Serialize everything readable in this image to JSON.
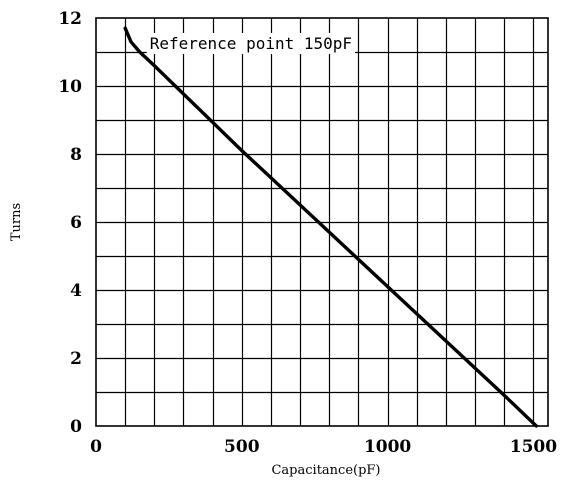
{
  "chart_data": {
    "type": "line",
    "title": "",
    "xlabel": "Capacitance(pF)",
    "ylabel": "Turns",
    "xlim": [
      0,
      1550
    ],
    "ylim": [
      0,
      12
    ],
    "x_ticks": [
      0,
      500,
      1000,
      1500
    ],
    "x_tick_labels": [
      "0",
      "500",
      "1000",
      "1500"
    ],
    "y_ticks": [
      0,
      2,
      4,
      6,
      8,
      10,
      12
    ],
    "y_tick_labels": [
      "0",
      "2",
      "4",
      "6",
      "8",
      "10",
      "12"
    ],
    "grid": true,
    "grid_x_step": 100,
    "grid_y_step": 1,
    "series": [
      {
        "x": [
          100,
          120,
          150,
          200,
          500,
          1000,
          1400,
          1510
        ],
        "y": [
          11.7,
          11.3,
          11.0,
          10.6,
          8.1,
          4.1,
          0.9,
          0.0
        ]
      }
    ],
    "annotations": [
      {
        "text": "Reference point 150pF",
        "x": 150,
        "y": 11.0
      }
    ]
  }
}
